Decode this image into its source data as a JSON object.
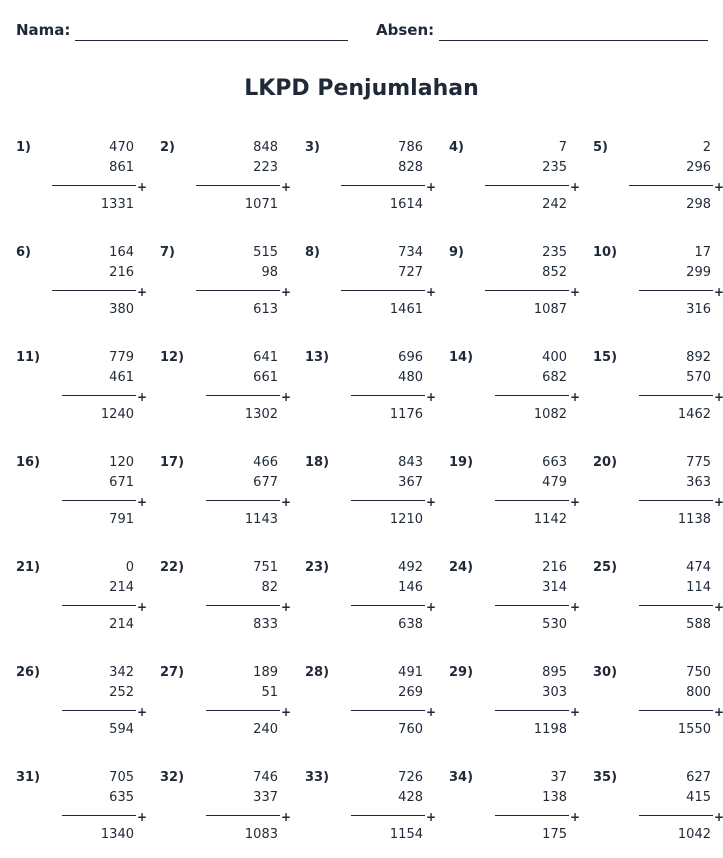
{
  "header": {
    "name_label": "Nama:",
    "absen_label": "Absen:"
  },
  "title": "LKPD Penjumlahan",
  "operator": "+",
  "problems": [
    {
      "num": "1)",
      "a": "470",
      "b": "861",
      "sum": "1331"
    },
    {
      "num": "2)",
      "a": "848",
      "b": "223",
      "sum": "1071"
    },
    {
      "num": "3)",
      "a": "786",
      "b": "828",
      "sum": "1614"
    },
    {
      "num": "4)",
      "a": "7",
      "b": "235",
      "sum": "242"
    },
    {
      "num": "5)",
      "a": "2",
      "b": "296",
      "sum": "298"
    },
    {
      "num": "6)",
      "a": "164",
      "b": "216",
      "sum": "380"
    },
    {
      "num": "7)",
      "a": "515",
      "b": "98",
      "sum": "613"
    },
    {
      "num": "8)",
      "a": "734",
      "b": "727",
      "sum": "1461"
    },
    {
      "num": "9)",
      "a": "235",
      "b": "852",
      "sum": "1087"
    },
    {
      "num": "10)",
      "a": "17",
      "b": "299",
      "sum": "316"
    },
    {
      "num": "11)",
      "a": "779",
      "b": "461",
      "sum": "1240"
    },
    {
      "num": "12)",
      "a": "641",
      "b": "661",
      "sum": "1302"
    },
    {
      "num": "13)",
      "a": "696",
      "b": "480",
      "sum": "1176"
    },
    {
      "num": "14)",
      "a": "400",
      "b": "682",
      "sum": "1082"
    },
    {
      "num": "15)",
      "a": "892",
      "b": "570",
      "sum": "1462"
    },
    {
      "num": "16)",
      "a": "120",
      "b": "671",
      "sum": "791"
    },
    {
      "num": "17)",
      "a": "466",
      "b": "677",
      "sum": "1143"
    },
    {
      "num": "18)",
      "a": "843",
      "b": "367",
      "sum": "1210"
    },
    {
      "num": "19)",
      "a": "663",
      "b": "479",
      "sum": "1142"
    },
    {
      "num": "20)",
      "a": "775",
      "b": "363",
      "sum": "1138"
    },
    {
      "num": "21)",
      "a": "0",
      "b": "214",
      "sum": "214"
    },
    {
      "num": "22)",
      "a": "751",
      "b": "82",
      "sum": "833"
    },
    {
      "num": "23)",
      "a": "492",
      "b": "146",
      "sum": "638"
    },
    {
      "num": "24)",
      "a": "216",
      "b": "314",
      "sum": "530"
    },
    {
      "num": "25)",
      "a": "474",
      "b": "114",
      "sum": "588"
    },
    {
      "num": "26)",
      "a": "342",
      "b": "252",
      "sum": "594"
    },
    {
      "num": "27)",
      "a": "189",
      "b": "51",
      "sum": "240"
    },
    {
      "num": "28)",
      "a": "491",
      "b": "269",
      "sum": "760"
    },
    {
      "num": "29)",
      "a": "895",
      "b": "303",
      "sum": "1198"
    },
    {
      "num": "30)",
      "a": "750",
      "b": "800",
      "sum": "1550"
    },
    {
      "num": "31)",
      "a": "705",
      "b": "635",
      "sum": "1340"
    },
    {
      "num": "32)",
      "a": "746",
      "b": "337",
      "sum": "1083"
    },
    {
      "num": "33)",
      "a": "726",
      "b": "428",
      "sum": "1154"
    },
    {
      "num": "34)",
      "a": "37",
      "b": "138",
      "sum": "175"
    },
    {
      "num": "35)",
      "a": "627",
      "b": "415",
      "sum": "1042"
    }
  ]
}
